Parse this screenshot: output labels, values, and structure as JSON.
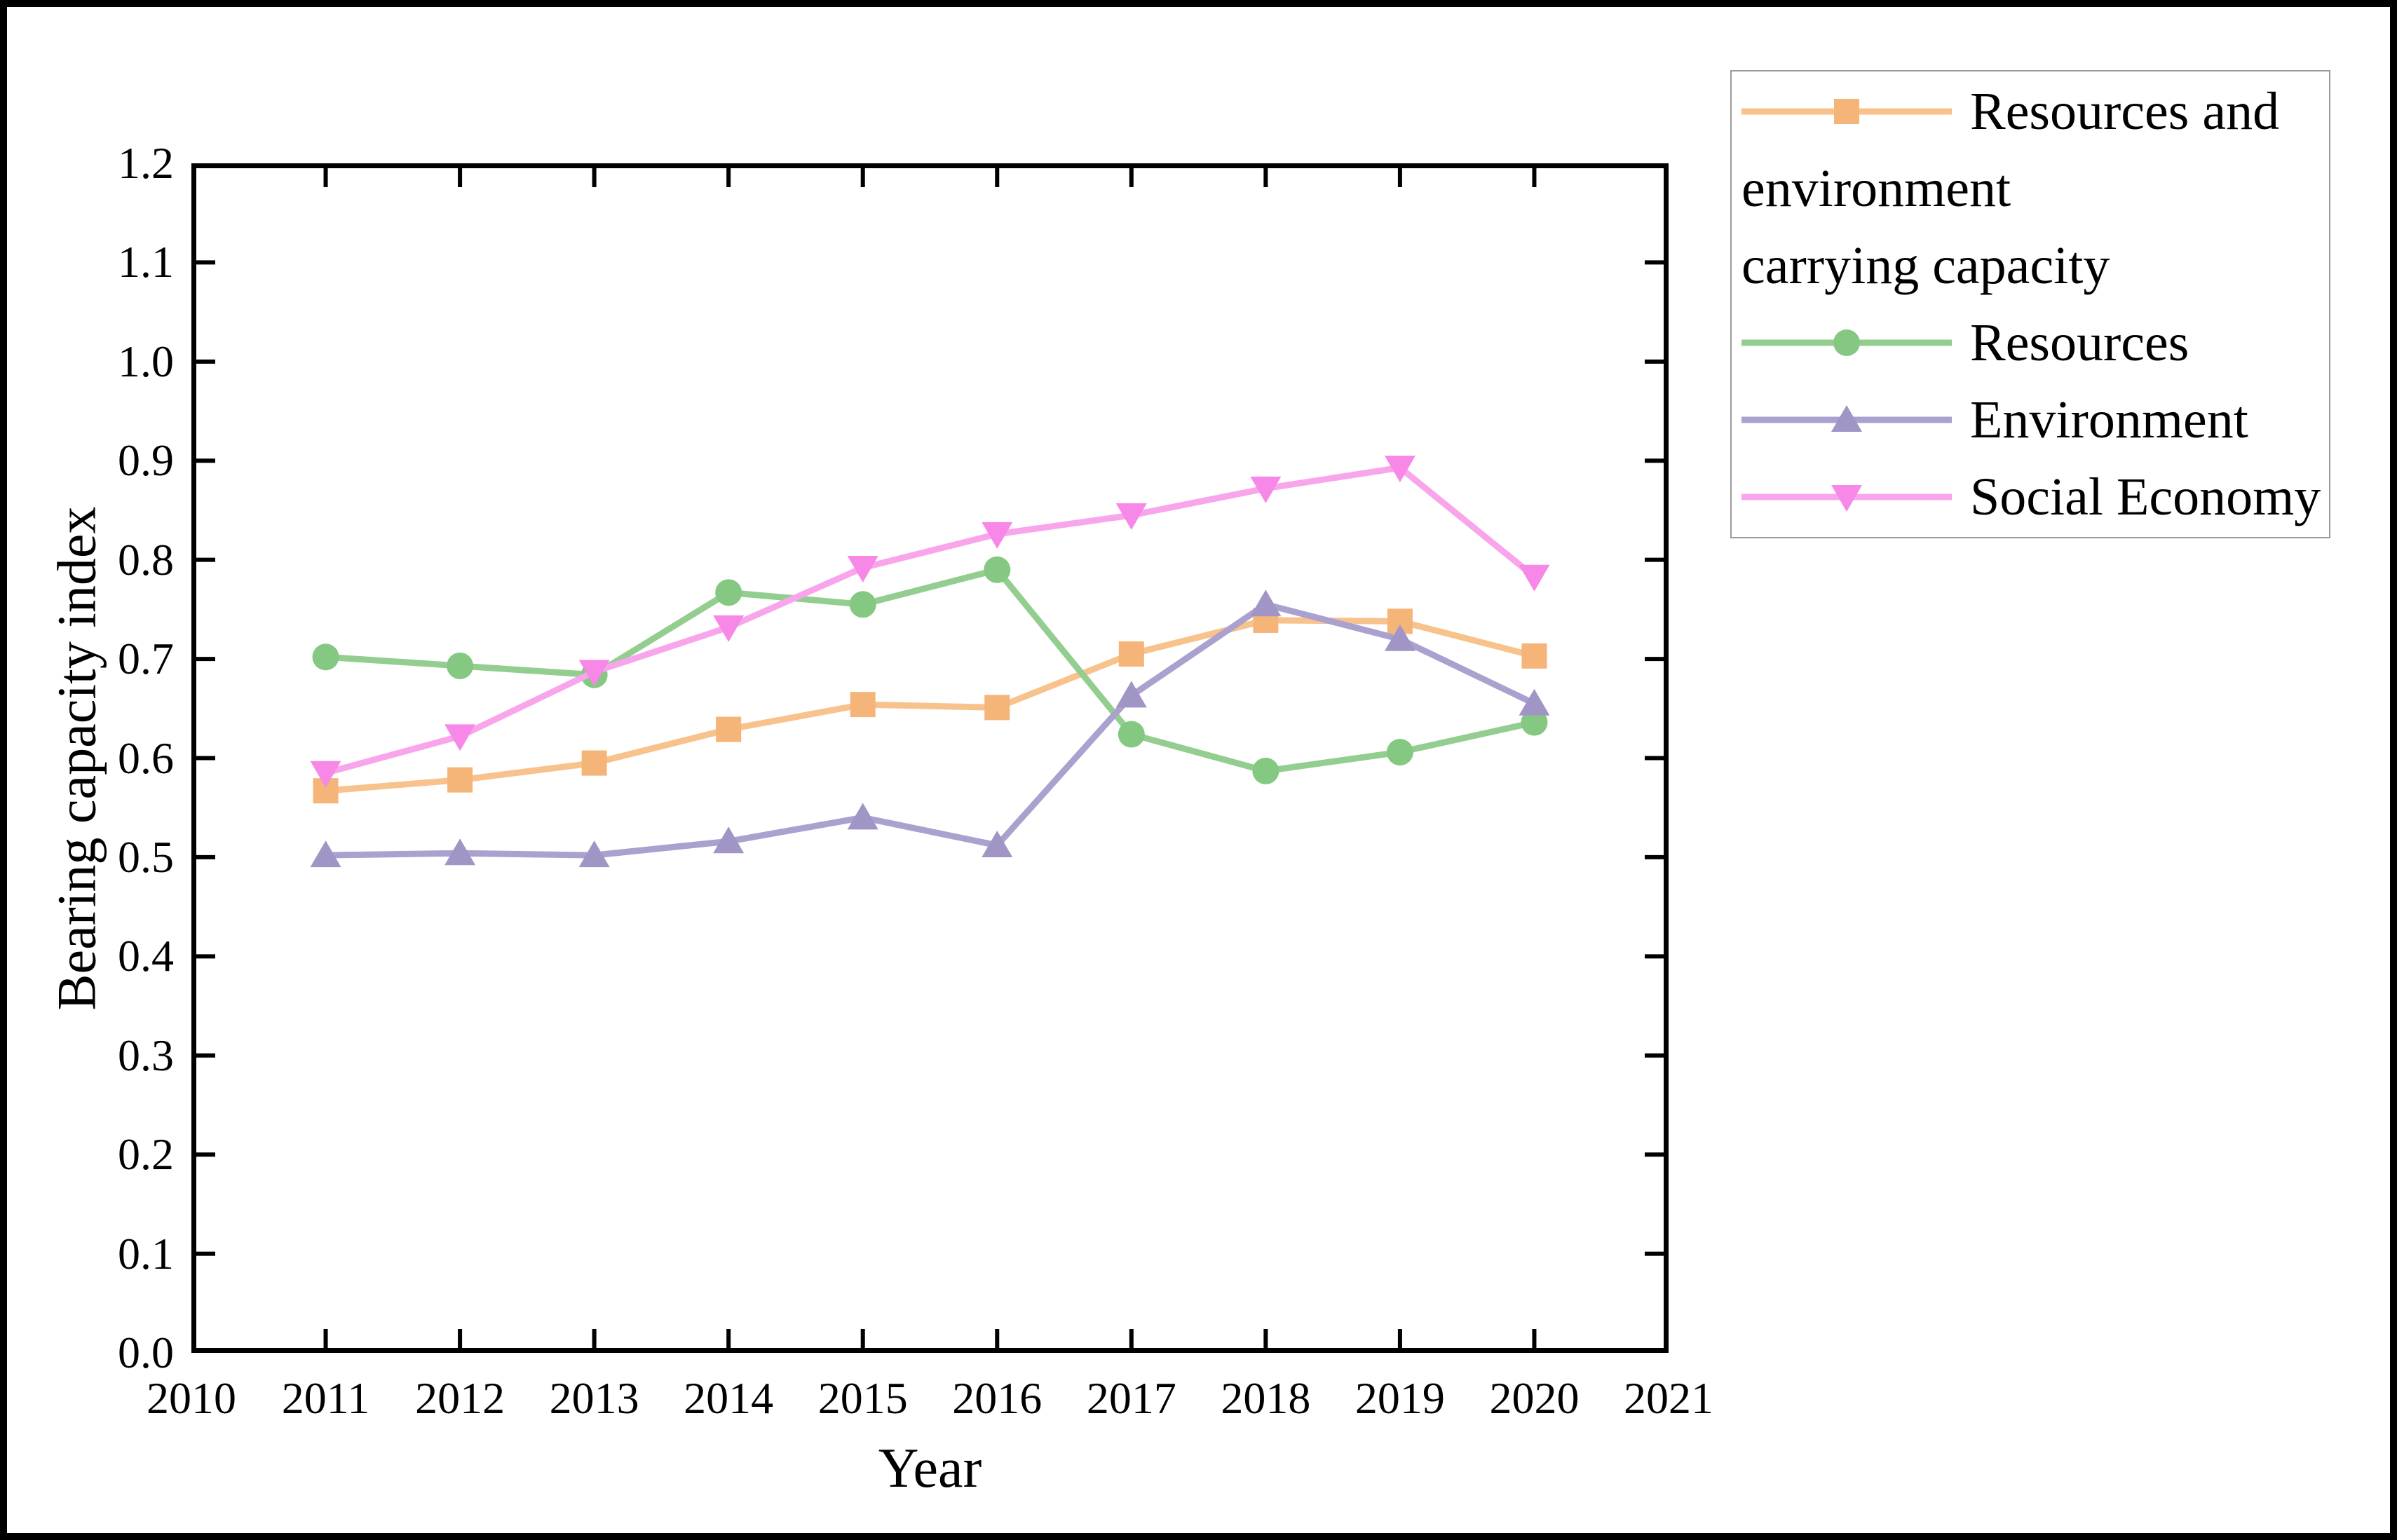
{
  "figure": {
    "background": "#ffffff",
    "border_color": "#000000",
    "axis_color": "#000000"
  },
  "chart_data": {
    "type": "line",
    "title": "",
    "xlabel": "Year",
    "ylabel": "Bearing capacity index",
    "xlim": [
      2010,
      2021
    ],
    "ylim": [
      0.0,
      1.2
    ],
    "grid": false,
    "legend_position": "outside-top-right",
    "x_ticks": [
      "2010",
      "2011",
      "2012",
      "2013",
      "2014",
      "2015",
      "2016",
      "2017",
      "2018",
      "2019",
      "2020",
      "2021"
    ],
    "y_ticks": [
      "0.0",
      "0.1",
      "0.2",
      "0.3",
      "0.4",
      "0.5",
      "0.6",
      "0.7",
      "0.8",
      "0.9",
      "1.0",
      "1.1",
      "1.2"
    ],
    "x": [
      2011,
      2012,
      2013,
      2014,
      2015,
      2016,
      2017,
      2018,
      2019,
      2020
    ],
    "series": [
      {
        "name": "Resources and environment carrying capacity",
        "marker": "square",
        "line_color": "#F8C28D",
        "marker_color": "#F5B478",
        "values": [
          0.567,
          0.578,
          0.595,
          0.629,
          0.654,
          0.651,
          0.705,
          0.739,
          0.738,
          0.703
        ]
      },
      {
        "name": "Resources",
        "marker": "circle",
        "line_color": "#93CE90",
        "marker_color": "#84C881",
        "values": [
          0.702,
          0.693,
          0.684,
          0.767,
          0.755,
          0.79,
          0.624,
          0.587,
          0.606,
          0.636
        ]
      },
      {
        "name": "Environment",
        "marker": "triangle-up",
        "line_color": "#ABA1CE",
        "marker_color": "#A195C6",
        "values": [
          0.502,
          0.504,
          0.502,
          0.516,
          0.54,
          0.512,
          0.663,
          0.755,
          0.72,
          0.655
        ]
      },
      {
        "name": "Social Economy",
        "marker": "triangle-down",
        "line_color": "#F9A5EC",
        "marker_color": "#F788E7",
        "values": [
          0.585,
          0.622,
          0.687,
          0.732,
          0.792,
          0.826,
          0.845,
          0.872,
          0.893,
          0.783
        ]
      }
    ],
    "legend": {
      "entries": [
        {
          "series": 0,
          "label_lines": [
            "Resources and",
            "environment",
            "carrying capacity"
          ]
        },
        {
          "series": 1,
          "label_lines": [
            "Resources"
          ]
        },
        {
          "series": 2,
          "label_lines": [
            "Environment"
          ]
        },
        {
          "series": 3,
          "label_lines": [
            "Social Economy"
          ]
        }
      ]
    }
  }
}
